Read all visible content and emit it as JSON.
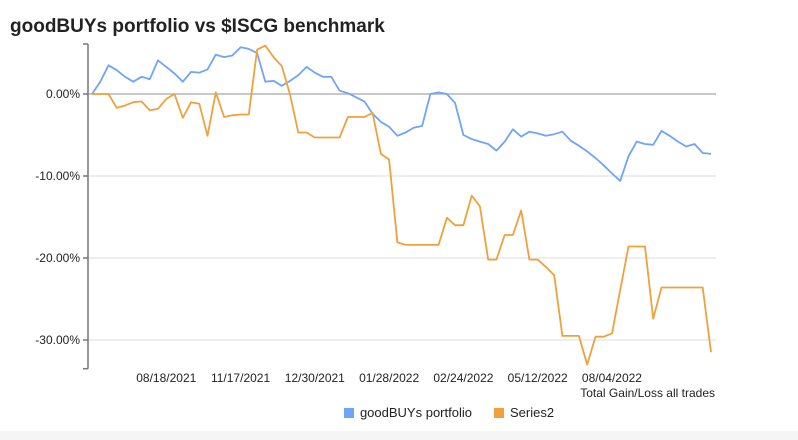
{
  "chart_data": {
    "type": "line",
    "title": "goodBUYs portfolio vs $ISCG benchmark",
    "annotation": "Total Gain/Loss all trades",
    "xlabel": "",
    "ylabel": "",
    "ylim": [
      -33.5,
      6.1
    ],
    "y_ticks": [
      0,
      -10,
      -20,
      -30
    ],
    "y_tick_labels": [
      "0.00%",
      "-10.00%",
      "-20.00%",
      "-30.00%"
    ],
    "x_tick_labels": [
      "08/18/2021",
      "11/17/2021",
      "12/30/2021",
      "01/28/2022",
      "02/24/2022",
      "05/12/2022",
      "08/04/2022"
    ],
    "x_tick_positions": [
      9,
      18,
      27,
      36,
      45,
      54,
      63
    ],
    "grid": true,
    "legend": "bottom",
    "series": [
      {
        "name": "goodBUYs portfolio",
        "color": "#6fa5f6",
        "values": [
          0,
          1.5,
          3.5,
          2.9,
          2.1,
          1.5,
          2.1,
          1.8,
          4.1,
          3.3,
          2.5,
          1.5,
          2.7,
          2.6,
          3.0,
          4.8,
          4.5,
          4.7,
          5.7,
          5.5,
          5.0,
          1.5,
          1.6,
          1.0,
          1.6,
          2.3,
          3.3,
          2.6,
          2.1,
          2.1,
          0.4,
          0.1,
          -0.4,
          -0.9,
          -2.4,
          -3.4,
          -4.0,
          -5.1,
          -4.7,
          -4.1,
          -3.9,
          0,
          0.2,
          0,
          -1.1,
          -5.0,
          -5.5,
          -5.8,
          -6.1,
          -6.9,
          -5.8,
          -4.3,
          -5.2,
          -4.6,
          -4.8,
          -5.1,
          -4.9,
          -4.6,
          -5.7,
          -6.3,
          -7.0,
          -7.8,
          -8.7,
          -9.7,
          -10.6,
          -7.6,
          -5.8,
          -6.1,
          -6.2,
          -4.5,
          -5.1,
          -5.8,
          -6.4,
          -6.1,
          -7.2,
          -7.3
        ]
      },
      {
        "name": "Series2",
        "color": "#f0a13c",
        "values": [
          0,
          0,
          0,
          -1.7,
          -1.4,
          -1.0,
          -0.9,
          -2.0,
          -1.8,
          -0.6,
          0,
          -2.9,
          -1.0,
          -1.2,
          -5.1,
          0.2,
          -2.8,
          -2.6,
          -2.5,
          -2.5,
          5.4,
          5.9,
          4.5,
          3.4,
          -0.1,
          -4.7,
          -4.7,
          -5.3,
          -5.3,
          -5.3,
          -5.3,
          -2.8,
          -2.8,
          -2.8,
          -2.3,
          -7.3,
          -8.0,
          -18.1,
          -18.4,
          -18.4,
          -18.4,
          -18.4,
          -18.4,
          -15.1,
          -16.0,
          -16.0,
          -12.4,
          -13.7,
          -20.2,
          -20.2,
          -17.2,
          -17.2,
          -14.2,
          -20.2,
          -20.2,
          -21.1,
          -22.1,
          -29.5,
          -29.5,
          -29.5,
          -33.0,
          -29.6,
          -29.6,
          -29.2,
          -23.9,
          -18.6,
          -18.6,
          -18.6,
          -27.4,
          -23.6,
          -23.6,
          -23.6,
          -23.6,
          -23.6,
          -23.6,
          -31.5
        ]
      }
    ]
  }
}
